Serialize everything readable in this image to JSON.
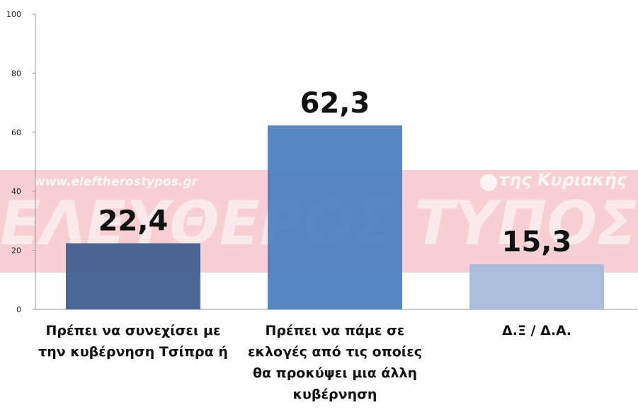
{
  "chart_data": {
    "type": "bar",
    "categories": [
      "Πρέπει να συνεχίσει με την κυβέρνηση Τσίπρα ή",
      "Πρέπει να πάμε σε εκλογές από τις οποίες θα προκύψει μια άλλη κυβέρνηση",
      "Δ.Ξ / Δ.Α."
    ],
    "values": [
      22.4,
      62.3,
      15.3
    ],
    "value_labels": [
      "22,4",
      "62,3",
      "15,3"
    ],
    "colors": [
      "#3d5b8f",
      "#4a7ebf",
      "#a3b7da"
    ],
    "ylim": [
      0,
      100
    ],
    "yticks": [
      0,
      20,
      40,
      60,
      80,
      100
    ],
    "watermark": {
      "url": "www.eleftherostypos.gr",
      "edition": "της Κυριακής",
      "name": "ΕΛΕΥΘΕΡΟΣ ΤΥΠΟΣ"
    }
  }
}
